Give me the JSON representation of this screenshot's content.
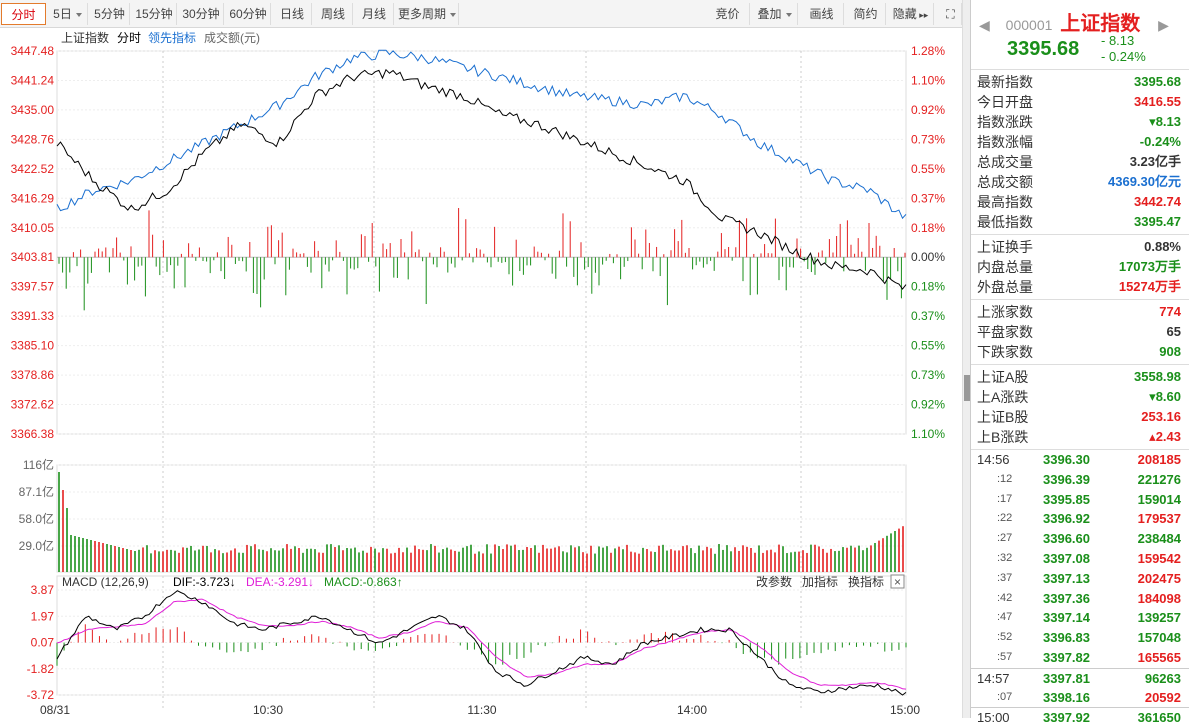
{
  "toolbar": {
    "tabs_left": [
      "分时",
      "5日",
      "5分钟",
      "15分钟",
      "30分钟",
      "60分钟",
      "日线",
      "周线",
      "月线",
      "更多周期"
    ],
    "tabs_right": [
      "竞价",
      "叠加",
      "画线",
      "简约",
      "隐藏"
    ]
  },
  "legend": {
    "index": "上证指数",
    "mode": "分时",
    "lead": "领先指标",
    "turnover": "成交额(元)"
  },
  "price_axis_left": [
    "3447.48",
    "3441.24",
    "3435.00",
    "3428.76",
    "3422.52",
    "3416.29",
    "3410.05",
    "3403.81",
    "3397.57",
    "3391.33",
    "3385.10",
    "3378.86",
    "3372.62",
    "3366.38"
  ],
  "price_axis_right": [
    "1.28%",
    "1.10%",
    "0.92%",
    "0.73%",
    "0.55%",
    "0.37%",
    "0.18%",
    "0.00%",
    "0.18%",
    "0.37%",
    "0.55%",
    "0.73%",
    "0.92%",
    "1.10%"
  ],
  "volume_axis": [
    "116亿",
    "87.1亿",
    "58.0亿",
    "29.0亿"
  ],
  "macd_axis": [
    "3.87",
    "1.97",
    "0.07",
    "-1.82",
    "-3.72"
  ],
  "time_axis": [
    "08/31",
    "10:30",
    "11:30",
    "14:00",
    "15:00"
  ],
  "macd_header": {
    "title": "MACD (12,26,9)",
    "dif": "DIF:-3.723",
    "dif_arrow": "↓",
    "dea": "DEA:-3.291",
    "dea_arrow": "↓",
    "macd": "MACD:-0.863",
    "macd_arrow": "↑",
    "btn1": "改参数",
    "btn2": "加指标",
    "btn3": "换指标",
    "close": "×"
  },
  "colors": {
    "up": "#e41f1f",
    "down": "#1a8f1a",
    "lead": "#1a6fd0",
    "price": "#000000",
    "dea": "#e01fd7"
  },
  "chart_data": {
    "type": "line",
    "series": [
      {
        "name": "上证指数",
        "values": [
          3428,
          3420,
          3414,
          3418,
          3426,
          3432,
          3428,
          3438,
          3442,
          3443,
          3440,
          3438,
          3434,
          3432,
          3429,
          3426,
          3423,
          3420,
          3412,
          3409,
          3405,
          3402,
          3401,
          3397
        ]
      },
      {
        "name": "领先指标",
        "values": [
          3414,
          3418,
          3420,
          3424,
          3428,
          3432,
          3436,
          3442,
          3446,
          3447,
          3446,
          3444,
          3442,
          3440,
          3438,
          3437,
          3436,
          3438,
          3434,
          3428,
          3424,
          3420,
          3418,
          3412
        ]
      }
    ],
    "macd": {
      "dif_last": -3.723,
      "dea_last": -3.291,
      "macd_last": -0.863
    }
  },
  "sidebar": {
    "code": "000001",
    "name": "上证指数",
    "price": "3395.68",
    "change": "- 8.13",
    "change_pct": "- 0.24%",
    "group1": [
      {
        "label": "最新指数",
        "value": "3395.68",
        "color": "green"
      },
      {
        "label": "今日开盘",
        "value": "3416.55",
        "color": "red"
      },
      {
        "label": "指数涨跌",
        "value": "▾8.13",
        "color": "green"
      },
      {
        "label": "指数涨幅",
        "value": "-0.24%",
        "color": "green"
      },
      {
        "label": "总成交量",
        "value": "3.23亿手",
        "color": "dark"
      },
      {
        "label": "总成交额",
        "value": "4369.30亿元",
        "color": "blue"
      },
      {
        "label": "最高指数",
        "value": "3442.74",
        "color": "red"
      },
      {
        "label": "最低指数",
        "value": "3395.47",
        "color": "green"
      }
    ],
    "group2": [
      {
        "label": "上证换手",
        "value": "0.88%",
        "color": "dark"
      },
      {
        "label": "内盘总量",
        "value": "17073万手",
        "color": "green"
      },
      {
        "label": "外盘总量",
        "value": "15274万手",
        "color": "red"
      }
    ],
    "group3": [
      {
        "label": "上涨家数",
        "value": "774",
        "color": "red"
      },
      {
        "label": "平盘家数",
        "value": "65",
        "color": "dark"
      },
      {
        "label": "下跌家数",
        "value": "908",
        "color": "green"
      }
    ],
    "group4": [
      {
        "label": "上证A股",
        "value": "3558.98",
        "color": "green"
      },
      {
        "label": "上A涨跌",
        "value": "▾8.60",
        "color": "green"
      },
      {
        "label": "上证B股",
        "value": "253.16",
        "color": "red"
      },
      {
        "label": "上B涨跌",
        "value": "▴2.43",
        "color": "red"
      }
    ],
    "ticks": [
      {
        "time": "14:56",
        "price": "3396.30",
        "vol": "208185",
        "pc": "green",
        "vc": "red",
        "major": true
      },
      {
        "time": ":12",
        "price": "3396.39",
        "vol": "221276",
        "pc": "green",
        "vc": "green"
      },
      {
        "time": ":17",
        "price": "3395.85",
        "vol": "159014",
        "pc": "green",
        "vc": "green"
      },
      {
        "time": ":22",
        "price": "3396.92",
        "vol": "179537",
        "pc": "green",
        "vc": "red"
      },
      {
        "time": ":27",
        "price": "3396.60",
        "vol": "238484",
        "pc": "green",
        "vc": "green"
      },
      {
        "time": ":32",
        "price": "3397.08",
        "vol": "159542",
        "pc": "green",
        "vc": "red"
      },
      {
        "time": ":37",
        "price": "3397.13",
        "vol": "202475",
        "pc": "green",
        "vc": "red"
      },
      {
        "time": ":42",
        "price": "3397.36",
        "vol": "184098",
        "pc": "green",
        "vc": "red"
      },
      {
        "time": ":47",
        "price": "3397.14",
        "vol": "139257",
        "pc": "green",
        "vc": "green"
      },
      {
        "time": ":52",
        "price": "3396.83",
        "vol": "157048",
        "pc": "green",
        "vc": "green"
      },
      {
        "time": ":57",
        "price": "3397.82",
        "vol": "165565",
        "pc": "green",
        "vc": "red"
      },
      {
        "time": "14:57",
        "price": "3397.81",
        "vol": "96263",
        "pc": "green",
        "vc": "green",
        "major": true,
        "sep": true
      },
      {
        "time": ":07",
        "price": "3398.16",
        "vol": "20592",
        "pc": "green",
        "vc": "red"
      },
      {
        "time": "15:00",
        "price": "3397.92",
        "vol": "361650",
        "pc": "green",
        "vc": "green",
        "major": true,
        "sep": true
      }
    ]
  }
}
